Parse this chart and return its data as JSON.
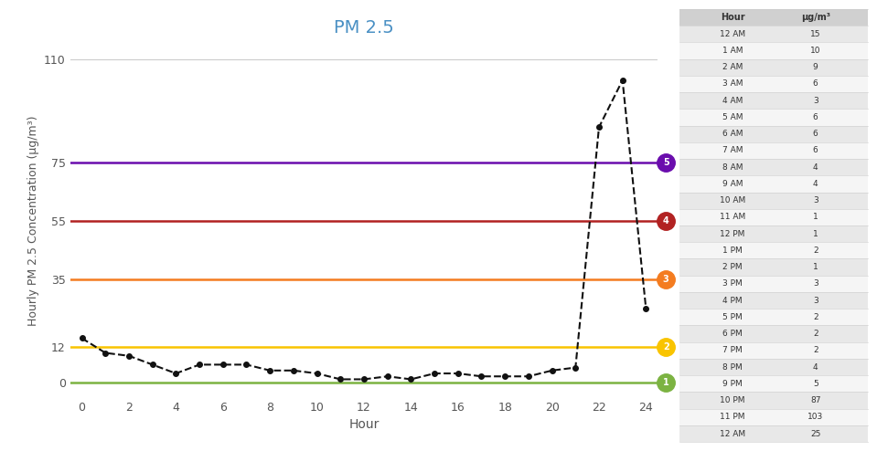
{
  "title": "PM 2.5",
  "xlabel": "Hour",
  "ylabel": "Hourly PM 2.5 Concentration (μg/m³)",
  "hours": [
    0,
    1,
    2,
    3,
    4,
    5,
    6,
    7,
    8,
    9,
    10,
    11,
    12,
    13,
    14,
    15,
    16,
    17,
    18,
    19,
    20,
    21,
    22,
    23,
    24
  ],
  "values": [
    15,
    10,
    9,
    6,
    3,
    6,
    6,
    6,
    4,
    4,
    3,
    1,
    1,
    2,
    1,
    3,
    3,
    2,
    2,
    2,
    4,
    5,
    87,
    103,
    25
  ],
  "hour_labels": [
    "12 AM",
    "1 AM",
    "2 AM",
    "3 AM",
    "4 AM",
    "5 AM",
    "6 AM",
    "7 AM",
    "8 AM",
    "9 AM",
    "10 AM",
    "11 AM",
    "12 PM",
    "1 PM",
    "2 PM",
    "3 PM",
    "4 PM",
    "5 PM",
    "6 PM",
    "7 PM",
    "8 PM",
    "9 PM",
    "10 PM",
    "11 PM",
    "12 AM"
  ],
  "threshold_lines": [
    {
      "y": 0,
      "color": "#7cb342",
      "label": "1"
    },
    {
      "y": 12,
      "color": "#f9c400",
      "label": "2"
    },
    {
      "y": 35,
      "color": "#f47c20",
      "label": "3"
    },
    {
      "y": 55,
      "color": "#b22222",
      "label": "4"
    },
    {
      "y": 75,
      "color": "#6a0dad",
      "label": "5"
    }
  ],
  "data_line_color": "#111111",
  "ylim": [
    -5,
    115
  ],
  "xlim": [
    -0.5,
    24.5
  ],
  "yticks": [
    0,
    12,
    35,
    55,
    75,
    110
  ],
  "xticks": [
    0,
    2,
    4,
    6,
    8,
    10,
    12,
    14,
    16,
    18,
    20,
    22,
    24
  ],
  "title_color": "#4a90c4",
  "background_color": "#ffffff",
  "table_header": [
    "Hour",
    "μg/m³"
  ],
  "table_bg": "#e8e8e8"
}
